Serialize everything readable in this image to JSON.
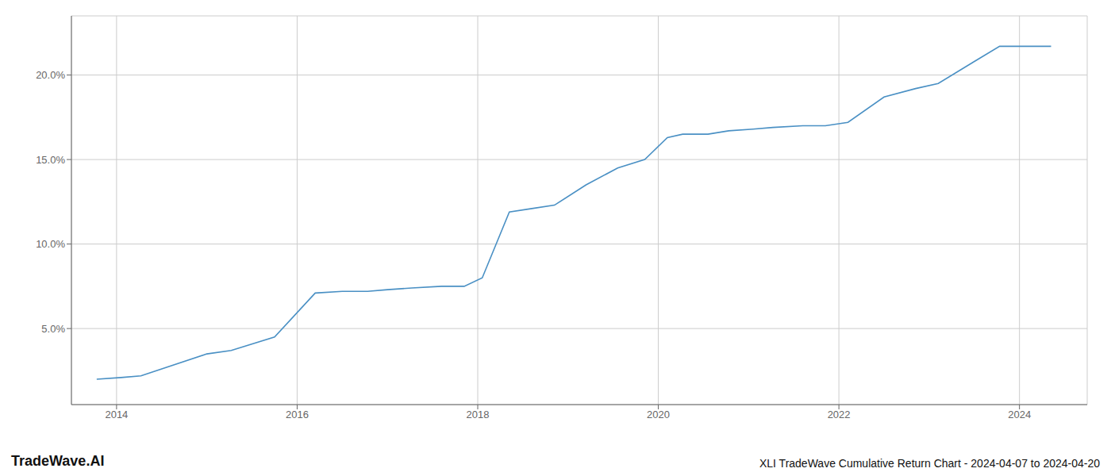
{
  "chart_data": {
    "type": "line",
    "title": "XLI TradeWave Cumulative Return Chart - 2024-04-07 to 2024-04-20",
    "annotations": [
      "TradeWave.AI"
    ],
    "x": [
      2013.78,
      2014.05,
      2014.27,
      2015.0,
      2015.27,
      2015.75,
      2016.2,
      2016.5,
      2016.78,
      2017.0,
      2017.27,
      2017.6,
      2017.85,
      2018.05,
      2018.35,
      2018.6,
      2018.85,
      2019.2,
      2019.55,
      2019.85,
      2020.1,
      2020.27,
      2020.55,
      2020.78,
      2021.05,
      2021.27,
      2021.6,
      2021.85,
      2022.1,
      2022.5,
      2022.85,
      2023.1,
      2023.5,
      2023.78,
      2024.1,
      2024.35
    ],
    "values": [
      2.0,
      2.1,
      2.2,
      3.5,
      3.7,
      4.5,
      7.1,
      7.2,
      7.2,
      7.3,
      7.4,
      7.5,
      7.5,
      8.0,
      11.9,
      12.1,
      12.3,
      13.5,
      14.5,
      15.0,
      16.3,
      16.5,
      16.5,
      16.7,
      16.8,
      16.9,
      17.0,
      17.0,
      17.2,
      18.7,
      19.2,
      19.5,
      20.8,
      21.7,
      21.7,
      21.7
    ],
    "color": "#4a90c4",
    "xlim": [
      2013.5,
      2024.75
    ],
    "ylim": [
      0.5,
      23.5
    ],
    "xticks": [
      2014,
      2016,
      2018,
      2020,
      2022,
      2024
    ],
    "yticks": [
      {
        "value": 5.0,
        "label": "5.0%"
      },
      {
        "value": 10.0,
        "label": "10.0%"
      },
      {
        "value": 15.0,
        "label": "15.0%"
      },
      {
        "value": 20.0,
        "label": "20.0%"
      }
    ],
    "grid": true
  }
}
